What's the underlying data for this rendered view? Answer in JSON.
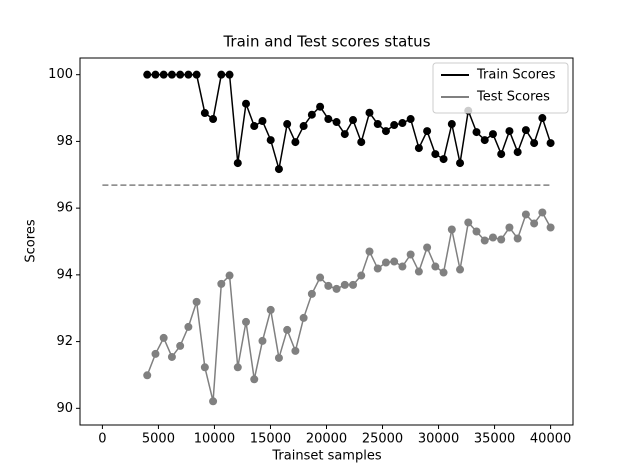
{
  "chart_data": {
    "type": "line",
    "title": "Train and Test scores status",
    "x_label": "Trainset samples",
    "y_label": "Scores",
    "x": [
      4000,
      4735,
      5469,
      6204,
      6939,
      7673,
      8408,
      9143,
      9878,
      10612,
      11347,
      12082,
      12816,
      13551,
      14286,
      15020,
      15755,
      16490,
      17224,
      17959,
      18694,
      19429,
      20163,
      20898,
      21633,
      22367,
      23102,
      23837,
      24571,
      25306,
      26041,
      26776,
      27510,
      28245,
      28980,
      29714,
      30449,
      31184,
      31918,
      32653,
      33388,
      34122,
      34857,
      35592,
      36327,
      37061,
      37796,
      38531,
      39265,
      40000
    ],
    "series": [
      {
        "name": "Train Scores",
        "color": "#000000",
        "values": [
          100,
          100,
          100,
          100,
          100,
          100,
          100,
          98.85,
          98.67,
          100,
          100,
          97.35,
          99.13,
          98.46,
          98.61,
          98.04,
          97.17,
          98.52,
          97.98,
          98.46,
          98.8,
          99.04,
          98.67,
          98.58,
          98.22,
          98.64,
          97.98,
          98.86,
          98.52,
          98.31,
          98.49,
          98.55,
          98.67,
          97.8,
          98.31,
          97.62,
          97.47,
          98.52,
          97.35,
          98.92,
          98.28,
          98.04,
          98.22,
          97.62,
          98.31,
          97.68,
          98.34,
          97.95,
          98.7,
          97.95
        ]
      },
      {
        "name": "Test Scores",
        "color": "#808080",
        "values": [
          90.99,
          91.63,
          92.11,
          91.54,
          91.87,
          92.44,
          93.19,
          91.23,
          90.21,
          93.73,
          93.98,
          91.23,
          92.59,
          90.87,
          92.02,
          92.95,
          91.51,
          92.35,
          91.72,
          92.71,
          93.43,
          93.92,
          93.67,
          93.58,
          93.7,
          93.7,
          93.98,
          94.7,
          94.19,
          94.37,
          94.4,
          94.25,
          94.61,
          94.1,
          94.82,
          94.25,
          94.07,
          95.36,
          94.16,
          95.57,
          95.3,
          95.03,
          95.12,
          95.06,
          95.42,
          95.09,
          95.81,
          95.54,
          95.87,
          95.42
        ]
      }
    ],
    "hline": {
      "y": 96.69,
      "xmin": 0,
      "xmax": 40000,
      "color": "#808080",
      "style": "dashed"
    },
    "xlim": [
      -2000,
      42000
    ],
    "ylim": [
      89.5,
      100.5
    ],
    "xticks": [
      0,
      5000,
      10000,
      15000,
      20000,
      25000,
      30000,
      35000,
      40000
    ],
    "yticks": [
      90,
      92,
      94,
      96,
      98,
      100
    ],
    "legend": "upper right",
    "grid": false
  }
}
